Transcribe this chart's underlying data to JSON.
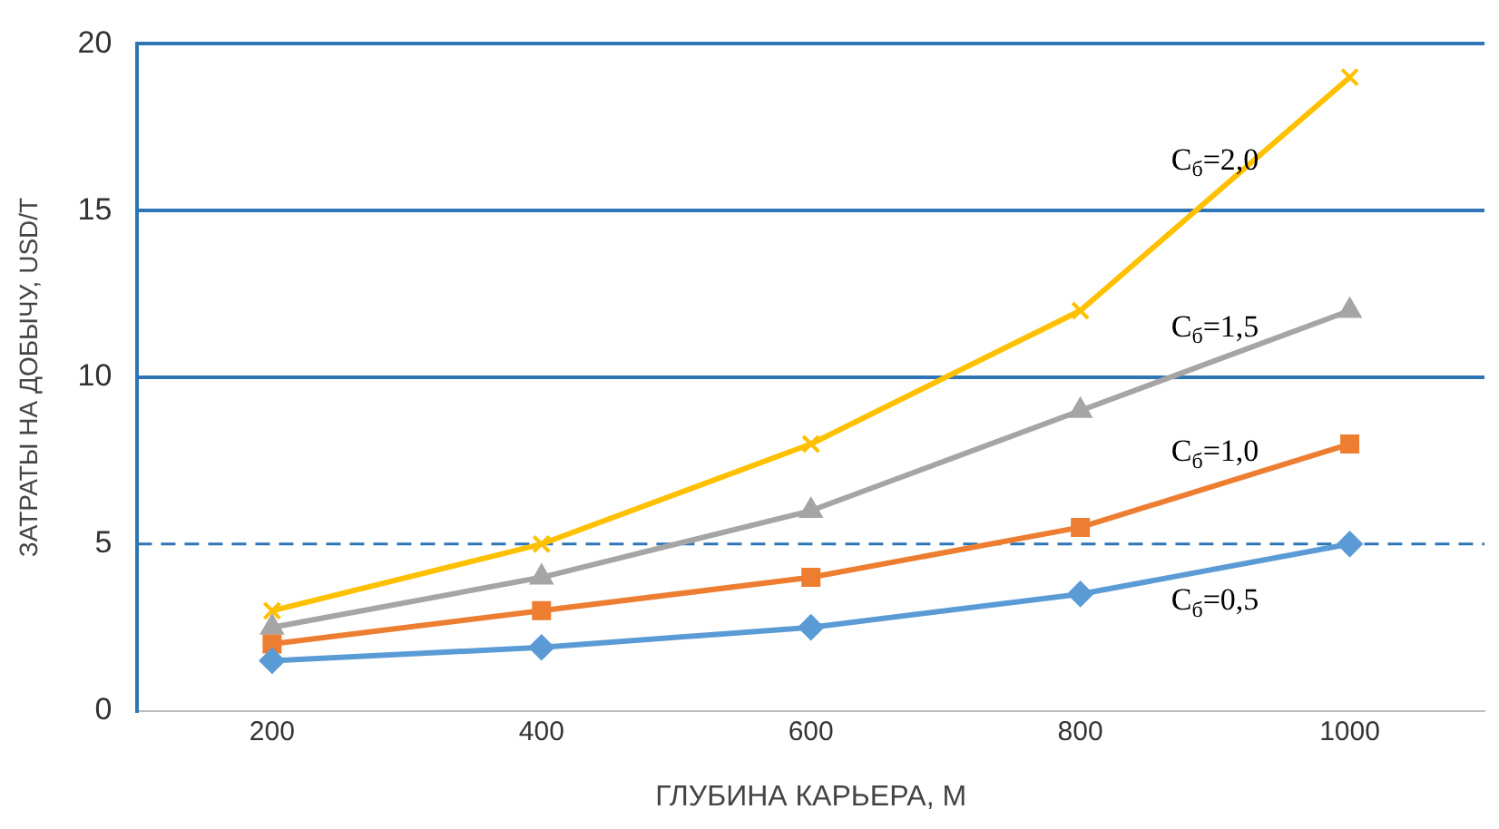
{
  "chart_data": {
    "type": "line",
    "xlabel": "ГЛУБИНА КАРЬЕРА, М",
    "ylabel": "ЗАТРАТЫ НА ДОБЫЧУ, USD/T",
    "x": [
      200,
      400,
      600,
      800,
      1000
    ],
    "series": [
      {
        "name": "C$_{б}$=0,5",
        "color": "#5b9bd5",
        "marker": "diamond",
        "values": [
          1.5,
          1.9,
          2.5,
          3.5,
          5
        ]
      },
      {
        "name": "C$_{б}$=1,0",
        "color": "#ed7d31",
        "marker": "square",
        "values": [
          2,
          3,
          4,
          5.5,
          8
        ]
      },
      {
        "name": "C$_{б}$=1,5",
        "color": "#a5a5a5",
        "marker": "triangle",
        "values": [
          2.5,
          4,
          6,
          9,
          12
        ]
      },
      {
        "name": "C$_{б}$=2,0",
        "color": "#ffc000",
        "marker": "cross",
        "values": [
          3,
          5,
          8,
          12,
          19
        ]
      }
    ],
    "xlim": [
      100,
      1100
    ],
    "xticks": [
      200,
      400,
      600,
      800,
      1000
    ],
    "ylim": [
      0,
      20
    ],
    "yticks": [
      0,
      5,
      10,
      15,
      20
    ],
    "grid": "y",
    "legend": false,
    "ref_lines": [
      {
        "axis": "y",
        "value": 5,
        "color": "#2e75b6",
        "line_style": "dashed"
      }
    ]
  }
}
